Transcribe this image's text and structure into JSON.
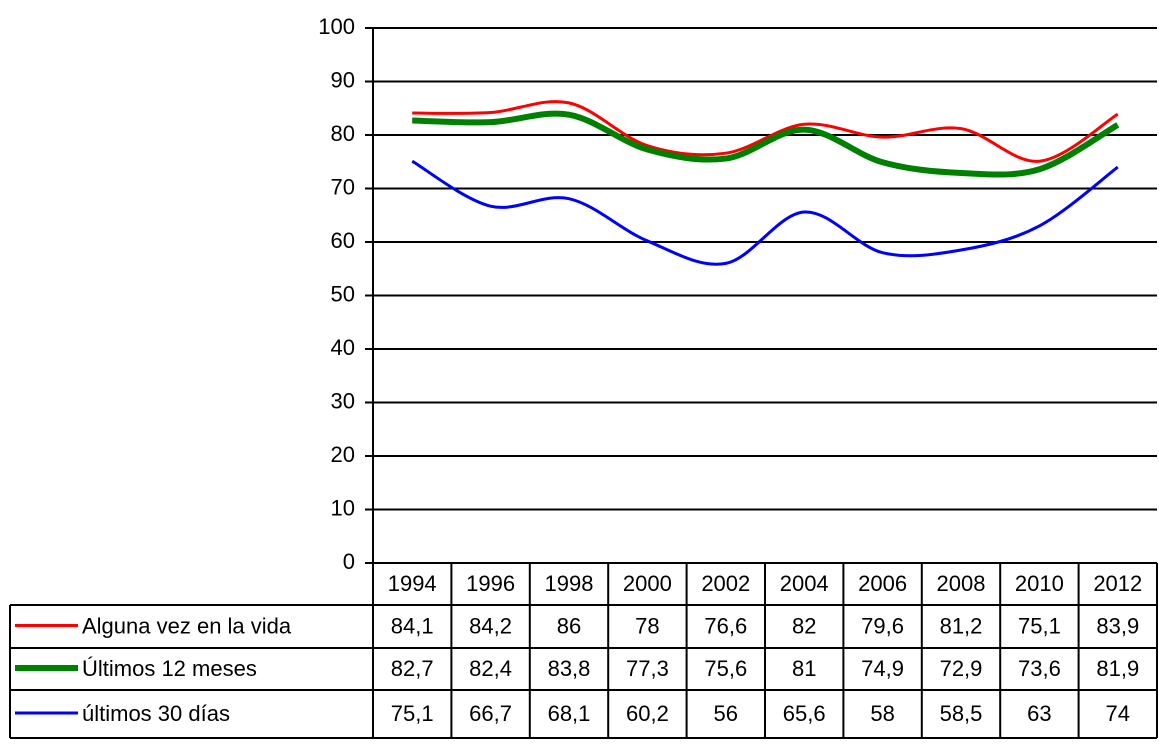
{
  "chart_data": {
    "type": "line",
    "categories": [
      "1994",
      "1996",
      "1998",
      "2000",
      "2002",
      "2004",
      "2006",
      "2008",
      "2010",
      "2012"
    ],
    "series": [
      {
        "name": "Alguna vez en la vida",
        "color": "#ff0000",
        "values": [
          84.1,
          84.2,
          86,
          78,
          76.6,
          82,
          79.6,
          81.2,
          75.1,
          83.9
        ],
        "value_labels": [
          "84,1",
          "84,2",
          "86",
          "78",
          "76,6",
          "82",
          "79,6",
          "81,2",
          "75,1",
          "83,9"
        ]
      },
      {
        "name": "Últimos 12 meses",
        "color": "#008000",
        "values": [
          82.7,
          82.4,
          83.8,
          77.3,
          75.6,
          81,
          74.9,
          72.9,
          73.6,
          81.9
        ],
        "value_labels": [
          "82,7",
          "82,4",
          "83,8",
          "77,3",
          "75,6",
          "81",
          "74,9",
          "72,9",
          "73,6",
          "81,9"
        ]
      },
      {
        "name": "últimos 30 días",
        "color": "#0000ff",
        "values": [
          75.1,
          66.7,
          68.1,
          60.2,
          56,
          65.6,
          58,
          58.5,
          63,
          74
        ],
        "value_labels": [
          "75,1",
          "66,7",
          "68,1",
          "60,2",
          "56",
          "65,6",
          "58",
          "58,5",
          "63",
          "74"
        ]
      }
    ],
    "ylim": [
      0,
      100
    ],
    "yticks": [
      0,
      10,
      20,
      30,
      40,
      50,
      60,
      70,
      80,
      90,
      100
    ],
    "grid": true,
    "smooth": true
  }
}
